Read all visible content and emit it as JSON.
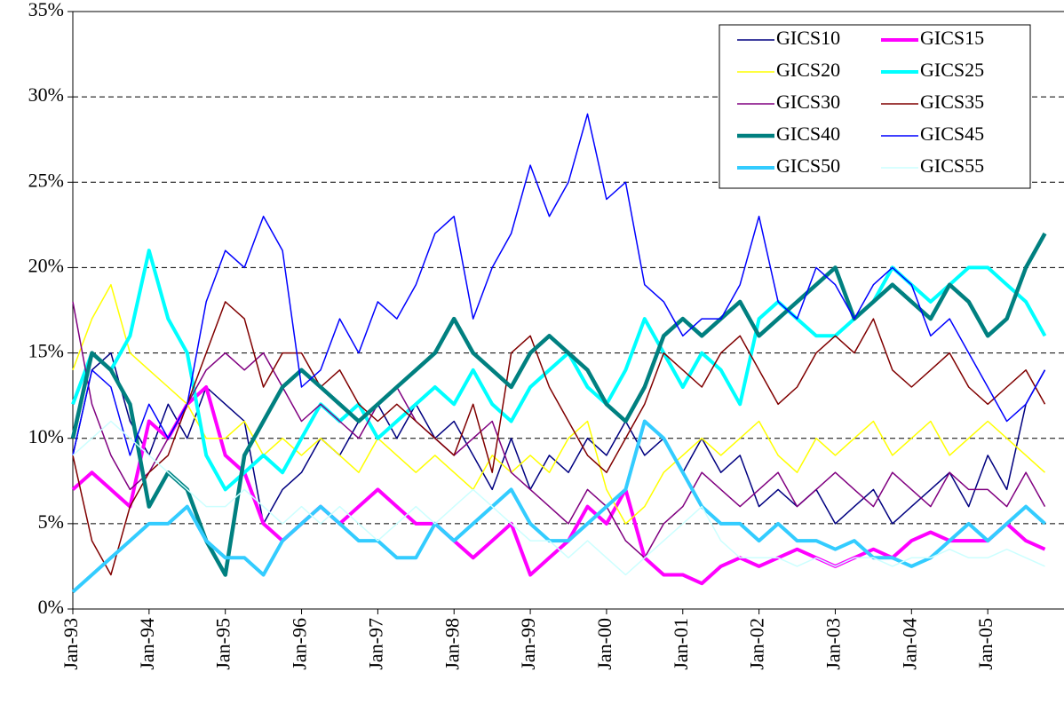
{
  "chart_data": {
    "type": "line",
    "categories": [
      "Jan-93",
      null,
      null,
      null,
      "Jan-94",
      null,
      null,
      null,
      "Jan-95",
      null,
      null,
      null,
      "Jan-96",
      null,
      null,
      null,
      "Jan-97",
      null,
      null,
      null,
      "Jan-98",
      null,
      null,
      null,
      "Jan-99",
      null,
      null,
      null,
      "Jan-00",
      null,
      null,
      null,
      "Jan-01",
      null,
      null,
      null,
      "Jan-02",
      null,
      null,
      null,
      "Jan-03",
      null,
      null,
      null,
      "Jan-04",
      null,
      null,
      null,
      "Jan-05",
      null,
      null,
      null
    ],
    "ylim": [
      0,
      35
    ],
    "yticks": [
      {
        "value": 0,
        "label": "0%"
      },
      {
        "value": 5,
        "label": "5%"
      },
      {
        "value": 10,
        "label": "10%"
      },
      {
        "value": 15,
        "label": "15%"
      },
      {
        "value": 20,
        "label": "20%"
      },
      {
        "value": 25,
        "label": "25%"
      },
      {
        "value": 30,
        "label": "30%"
      },
      {
        "value": 35,
        "label": "35%"
      }
    ],
    "grid": true,
    "legend": "top-right",
    "series": [
      {
        "name": "GICS10",
        "color": "#000080",
        "line_width": 1.5,
        "values": [
          9,
          14,
          15,
          11,
          9,
          12,
          10,
          13,
          12,
          11,
          5,
          7,
          8,
          10,
          9,
          11,
          12,
          10,
          12,
          10,
          11,
          9,
          7,
          10,
          7,
          9,
          8,
          10,
          9,
          11,
          9,
          10,
          8,
          10,
          8,
          9,
          6,
          7,
          6,
          7,
          5,
          6,
          7,
          5,
          6,
          7,
          8,
          6,
          9,
          7,
          12,
          14
        ]
      },
      {
        "name": "GICS15",
        "color": "#ff00ff",
        "line_width": 4,
        "values": [
          7,
          8,
          7,
          6,
          11,
          10,
          12,
          13,
          9,
          8,
          5,
          4,
          5,
          6,
          5,
          6,
          7,
          6,
          5,
          5,
          4,
          3,
          4,
          5,
          2,
          3,
          4,
          6,
          5,
          7,
          3,
          2,
          2,
          1.5,
          2.5,
          3,
          2.5,
          3,
          3.5,
          3,
          2.5,
          3,
          3.5,
          3,
          4,
          4.5,
          4,
          4,
          4,
          5,
          4,
          3.5
        ]
      },
      {
        "name": "GICS20",
        "color": "#ffff00",
        "line_width": 1.5,
        "values": [
          14,
          17,
          19,
          15,
          14,
          13,
          12,
          10,
          10,
          11,
          9,
          10,
          9,
          10,
          9,
          8,
          10,
          9,
          8,
          9,
          8,
          7,
          9,
          8,
          9,
          8,
          10,
          11,
          7,
          5,
          6,
          8,
          9,
          10,
          9,
          10,
          11,
          9,
          8,
          10,
          9,
          10,
          11,
          9,
          10,
          11,
          9,
          10,
          11,
          10,
          9,
          8
        ]
      },
      {
        "name": "GICS25",
        "color": "#00ffff",
        "line_width": 4,
        "values": [
          12,
          15,
          14,
          16,
          21,
          17,
          15,
          9,
          7,
          8,
          9,
          8,
          10,
          12,
          11,
          12,
          10,
          11,
          12,
          13,
          12,
          14,
          12,
          11,
          13,
          14,
          15,
          13,
          12,
          14,
          17,
          15,
          13,
          15,
          14,
          12,
          17,
          18,
          17,
          16,
          16,
          17,
          18,
          20,
          19,
          18,
          19,
          20,
          20,
          19,
          18,
          16
        ]
      },
      {
        "name": "GICS30",
        "color": "#800080",
        "line_width": 1.5,
        "values": [
          18,
          12,
          9,
          7,
          8,
          10,
          12,
          14,
          15,
          14,
          15,
          13,
          11,
          12,
          11,
          10,
          12,
          13,
          11,
          10,
          9,
          10,
          11,
          8,
          7,
          6,
          5,
          7,
          6,
          4,
          3,
          5,
          6,
          8,
          7,
          6,
          7,
          8,
          6,
          7,
          8,
          7,
          6,
          8,
          7,
          6,
          8,
          7,
          7,
          6,
          8,
          6
        ]
      },
      {
        "name": "GICS35",
        "color": "#800000",
        "line_width": 1.5,
        "values": [
          9,
          4,
          2,
          6,
          8,
          9,
          12,
          15,
          18,
          17,
          13,
          15,
          15,
          13,
          14,
          12,
          11,
          12,
          11,
          10,
          9,
          12,
          8,
          15,
          16,
          13,
          11,
          9,
          8,
          10,
          12,
          15,
          14,
          13,
          15,
          16,
          14,
          12,
          13,
          15,
          16,
          15,
          17,
          14,
          13,
          14,
          15,
          13,
          12,
          13,
          14,
          12
        ]
      },
      {
        "name": "GICS40",
        "color": "#008080",
        "line_width": 4.5,
        "values": [
          10,
          15,
          14,
          12,
          6,
          8,
          7,
          4,
          2,
          9,
          11,
          13,
          14,
          13,
          12,
          11,
          12,
          13,
          14,
          15,
          17,
          15,
          14,
          13,
          15,
          16,
          15,
          14,
          12,
          11,
          13,
          16,
          17,
          16,
          17,
          18,
          16,
          17,
          18,
          19,
          20,
          17,
          18,
          19,
          18,
          17,
          19,
          18,
          16,
          17,
          20,
          22
        ]
      },
      {
        "name": "GICS45",
        "color": "#0000ff",
        "line_width": 1.5,
        "values": [
          9,
          14,
          13,
          9,
          12,
          10,
          12,
          18,
          21,
          20,
          23,
          21,
          13,
          14,
          17,
          15,
          18,
          17,
          19,
          22,
          23,
          17,
          20,
          22,
          26,
          23,
          25,
          29,
          24,
          25,
          19,
          18,
          16,
          17,
          17,
          19,
          23,
          18,
          17,
          20,
          19,
          17,
          19,
          20,
          19,
          16,
          17,
          15,
          13,
          11,
          12,
          14
        ]
      },
      {
        "name": "GICS50",
        "color": "#33ccff",
        "line_width": 4,
        "values": [
          1,
          2,
          3,
          4,
          5,
          5,
          6,
          4,
          3,
          3,
          2,
          4,
          5,
          6,
          5,
          4,
          4,
          3,
          3,
          5,
          4,
          5,
          6,
          7,
          5,
          4,
          4,
          5,
          6,
          7,
          11,
          10,
          8,
          6,
          5,
          5,
          4,
          5,
          4,
          4,
          3.5,
          4,
          3,
          3,
          2.5,
          3,
          4,
          5,
          4,
          5,
          6,
          5
        ]
      },
      {
        "name": "GICS55",
        "color": "#ccffff",
        "line_width": 1.5,
        "values": [
          9,
          10,
          11,
          10,
          9,
          8,
          7,
          6,
          6,
          7,
          6,
          5,
          6,
          5,
          6,
          5,
          4,
          5,
          6,
          5,
          6,
          7,
          6,
          5,
          4,
          4,
          3,
          4,
          3,
          2,
          3,
          4,
          5,
          6,
          4,
          3,
          3,
          3,
          2.5,
          3,
          2.5,
          3,
          3,
          2.5,
          3,
          3,
          3.5,
          3,
          3,
          3.5,
          3,
          2.5
        ]
      }
    ]
  }
}
